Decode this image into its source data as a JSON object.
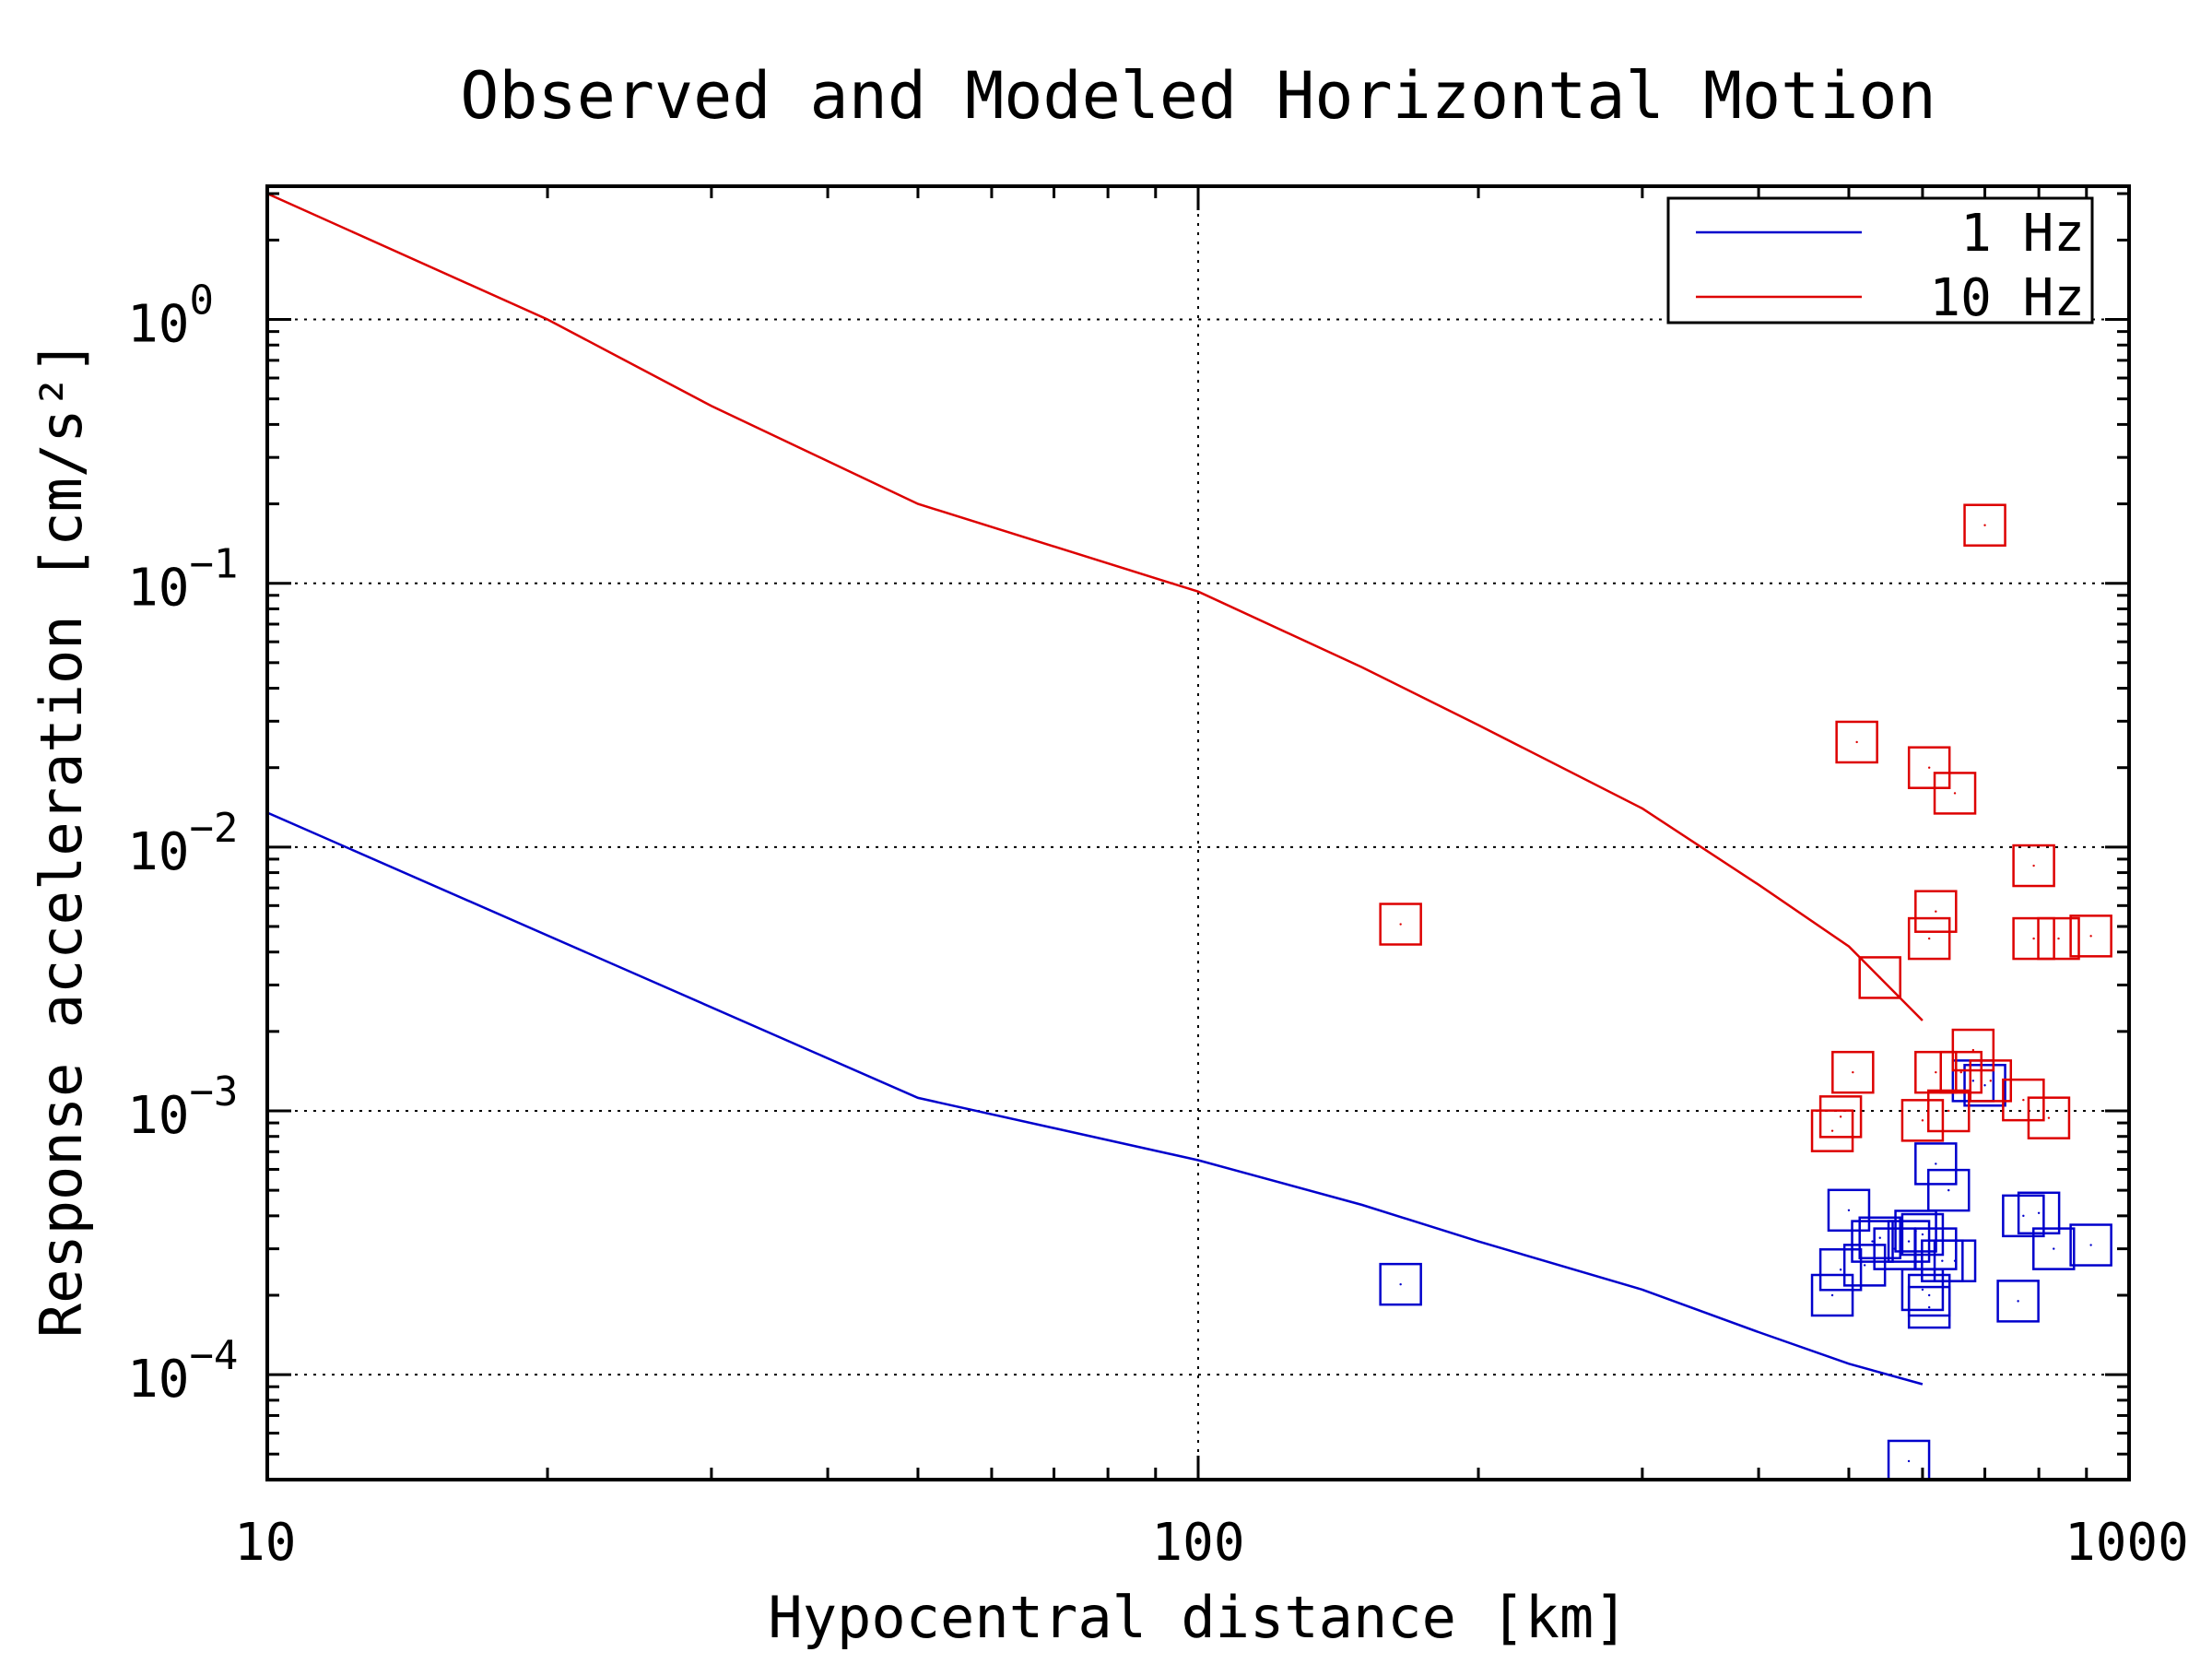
{
  "chart_data": {
    "type": "scatter",
    "title": "Observed and Modeled Horizontal Motion",
    "xlabel": "Hypocentral distance [km]",
    "ylabel": "Response acceleration [cm/s²]",
    "xscale": "log",
    "yscale": "log",
    "xlim": [
      10,
      1000
    ],
    "ylim": [
      4e-05,
      3.2
    ],
    "x_ticks": [
      {
        "value": 10,
        "label": "10"
      },
      {
        "value": 100,
        "label": "100"
      },
      {
        "value": 1000,
        "label": "1000"
      }
    ],
    "y_ticks": [
      {
        "value": 1,
        "base": "10",
        "exp": "0"
      },
      {
        "value": 0.1,
        "base": "10",
        "exp": "−1"
      },
      {
        "value": 0.01,
        "base": "10",
        "exp": "−2"
      },
      {
        "value": 0.001,
        "base": "10",
        "exp": "−3"
      },
      {
        "value": 0.0001,
        "base": "10",
        "exp": "−4"
      }
    ],
    "grid": "dotted, major ticks",
    "legend_position": "top-right",
    "legend": [
      {
        "label": "1 Hz",
        "color": "#0000cc"
      },
      {
        "label": "10 Hz",
        "color": "#dd0000"
      }
    ],
    "series": [
      {
        "name": "1 Hz",
        "kind": "line",
        "color": "#0000cc",
        "x": [
          10,
          50,
          100,
          150,
          200,
          300,
          400,
          500,
          600
        ],
        "y": [
          0.0135,
          0.00112,
          0.00065,
          0.00044,
          0.00032,
          0.00021,
          0.000145,
          0.00011,
          9.2e-05
        ]
      },
      {
        "name": "10 Hz",
        "kind": "line",
        "color": "#dd0000",
        "x": [
          10,
          20,
          30,
          50,
          100,
          150,
          200,
          300,
          400,
          500,
          600
        ],
        "y": [
          3.0,
          1.0,
          0.47,
          0.2,
          0.093,
          0.048,
          0.029,
          0.014,
          0.0072,
          0.0042,
          0.0022
        ]
      },
      {
        "name": "1 Hz observed",
        "kind": "scatter",
        "marker": "square",
        "color": "#0000cc",
        "x": [
          165,
          580,
          500,
          520,
          530,
          540,
          560,
          590,
          600,
          620,
          630,
          650,
          580,
          600,
          610,
          610,
          480,
          490,
          620,
          640,
          680,
          700,
          760,
          770,
          800,
          830,
          910
        ],
        "y": [
          0.00022,
          4.7e-05,
          0.00042,
          0.00026,
          0.00032,
          0.00033,
          0.0003,
          0.00035,
          0.00034,
          0.0003,
          0.00027,
          0.00027,
          0.00032,
          0.00021,
          0.0002,
          0.00018,
          0.0002,
          0.00025,
          0.00063,
          0.0005,
          0.0013,
          0.00125,
          0.00019,
          0.0004,
          0.00041,
          0.0003,
          0.00031
        ]
      },
      {
        "name": "10 Hz observed",
        "kind": "scatter",
        "marker": "square",
        "color": "#dd0000",
        "x": [
          165,
          510,
          610,
          650,
          700,
          790,
          620,
          610,
          540,
          680,
          620,
          660,
          710,
          770,
          505,
          490,
          480,
          600,
          640,
          820,
          790,
          840,
          910
        ],
        "y": [
          0.0051,
          0.025,
          0.02,
          0.016,
          0.166,
          0.0085,
          0.0057,
          0.0045,
          0.0032,
          0.0017,
          0.0014,
          0.0014,
          0.0013,
          0.0011,
          0.0014,
          0.00095,
          0.00084,
          0.00092,
          0.001,
          0.00094,
          0.0045,
          0.0045,
          0.0046
        ]
      }
    ]
  }
}
